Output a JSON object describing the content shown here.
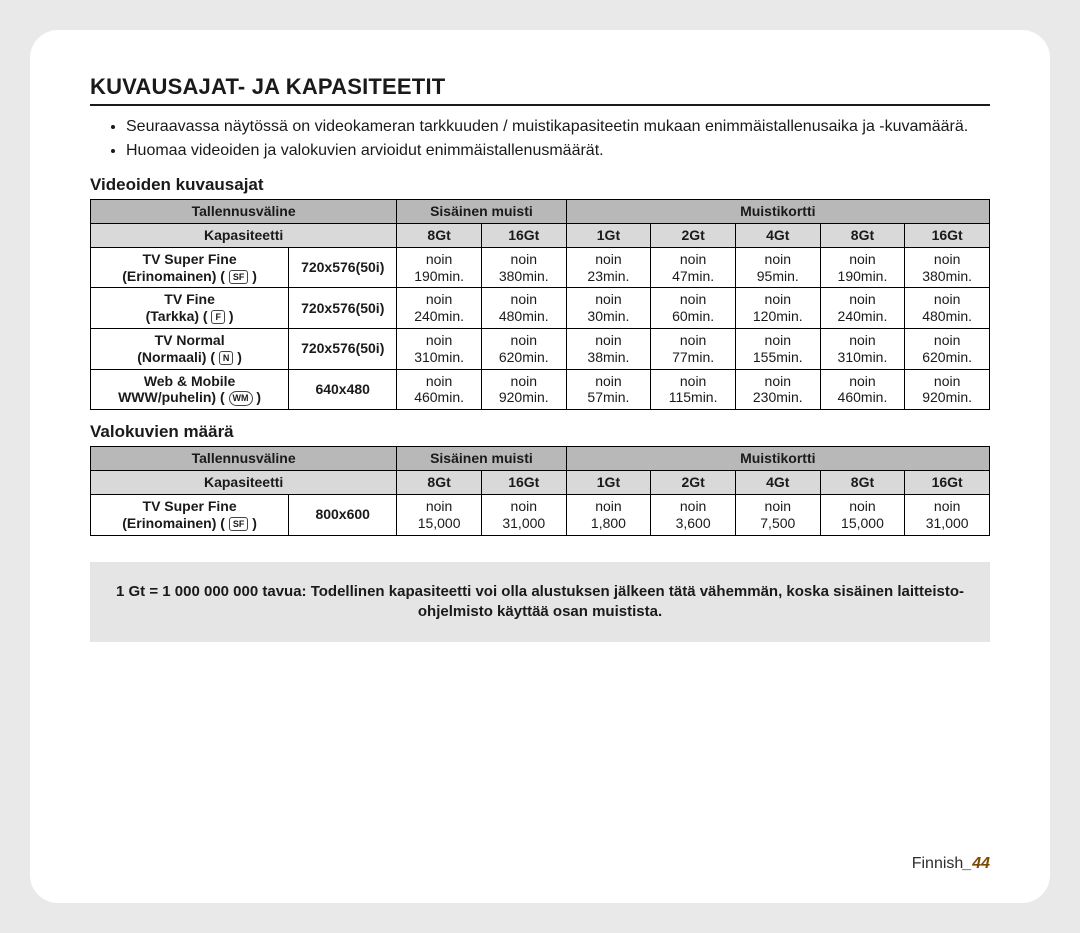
{
  "title": "KUVAUSAJAT- JA KAPASITEETIT",
  "bullets": [
    "Seuraavassa näytössä on videokameran tarkkuuden / muistikapasiteetin mukaan enimmäistallenusaika ja -kuvamäärä.",
    "Huomaa videoiden ja valokuvien arvioidut enimmäistallenusmäärät."
  ],
  "video": {
    "heading": "Videoiden kuvausajat",
    "headers": {
      "media": "Tallennusväline",
      "internal": "Sisäinen muisti",
      "card": "Muistikortti",
      "capacity": "Kapasiteetti"
    },
    "capacities": [
      "8Gt",
      "16Gt",
      "1Gt",
      "2Gt",
      "4Gt",
      "8Gt",
      "16Gt"
    ],
    "noin": "noin",
    "rows": [
      {
        "label_l1": "TV Super Fine",
        "label_l2": "(Erinomainen) (",
        "badge": "SF",
        "res": "720x576(50i)",
        "vals": [
          "190min.",
          "380min.",
          "23min.",
          "47min.",
          "95min.",
          "190min.",
          "380min."
        ]
      },
      {
        "label_l1": "TV Fine",
        "label_l2": "(Tarkka) (",
        "badge": "F",
        "res": "720x576(50i)",
        "vals": [
          "240min.",
          "480min.",
          "30min.",
          "60min.",
          "120min.",
          "240min.",
          "480min."
        ]
      },
      {
        "label_l1": "TV Normal",
        "label_l2": "(Normaali) (",
        "badge": "N",
        "res": "720x576(50i)",
        "vals": [
          "310min.",
          "620min.",
          "38min.",
          "77min.",
          "155min.",
          "310min.",
          "620min."
        ]
      },
      {
        "label_l1": "Web & Mobile",
        "label_l2": "WWW/puhelin) (",
        "badge": "WM",
        "badge_circle": true,
        "res": "640x480",
        "vals": [
          "460min.",
          "920min.",
          "57min.",
          "115min.",
          "230min.",
          "460min.",
          "920min."
        ]
      }
    ]
  },
  "photo": {
    "heading": "Valokuvien määrä",
    "headers": {
      "media": "Tallennusväline",
      "internal": "Sisäinen muisti",
      "card": "Muistikortti",
      "capacity": "Kapasiteetti"
    },
    "capacities": [
      "8Gt",
      "16Gt",
      "1Gt",
      "2Gt",
      "4Gt",
      "8Gt",
      "16Gt"
    ],
    "noin": "noin",
    "rows": [
      {
        "label_l1": "TV Super Fine",
        "label_l2": "(Erinomainen) (",
        "badge": "SF",
        "res": "800x600",
        "vals": [
          "15,000",
          "31,000",
          "1,800",
          "3,600",
          "7,500",
          "15,000",
          "31,000"
        ]
      }
    ]
  },
  "note": "1 Gt = 1 000 000 000 tavua: Todellinen kapasiteetti voi olla alustuksen jälkeen tätä vähemmän, koska sisäinen laitteisto-ohjelmisto käyttää osan muistista.",
  "footer": {
    "lang": "Finnish",
    "sep": "_",
    "page": "44"
  }
}
